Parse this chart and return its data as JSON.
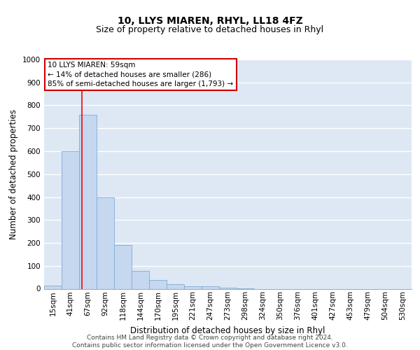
{
  "title1": "10, LLYS MIAREN, RHYL, LL18 4FZ",
  "title2": "Size of property relative to detached houses in Rhyl",
  "xlabel": "Distribution of detached houses by size in Rhyl",
  "ylabel": "Number of detached properties",
  "bar_labels": [
    "15sqm",
    "41sqm",
    "67sqm",
    "92sqm",
    "118sqm",
    "144sqm",
    "170sqm",
    "195sqm",
    "221sqm",
    "247sqm",
    "273sqm",
    "298sqm",
    "324sqm",
    "350sqm",
    "376sqm",
    "401sqm",
    "427sqm",
    "453sqm",
    "479sqm",
    "504sqm",
    "530sqm"
  ],
  "bar_values": [
    15,
    600,
    760,
    400,
    190,
    78,
    38,
    20,
    12,
    10,
    5,
    3,
    0,
    0,
    0,
    0,
    0,
    0,
    0,
    0,
    0
  ],
  "bar_color": "#c5d8f0",
  "bar_edge_color": "#7eabd4",
  "red_line_x": 1.65,
  "annotation_line1": "10 LLYS MIAREN: 59sqm",
  "annotation_line2": "← 14% of detached houses are smaller (286)",
  "annotation_line3": "85% of semi-detached houses are larger (1,793) →",
  "annotation_box_color": "#ffffff",
  "annotation_box_edge_color": "#cc0000",
  "ylim": [
    0,
    1000
  ],
  "yticks": [
    0,
    100,
    200,
    300,
    400,
    500,
    600,
    700,
    800,
    900,
    1000
  ],
  "background_color": "#dde8f4",
  "footer_text": "Contains HM Land Registry data © Crown copyright and database right 2024.\nContains public sector information licensed under the Open Government Licence v3.0.",
  "title1_fontsize": 10,
  "title2_fontsize": 9,
  "xlabel_fontsize": 8.5,
  "ylabel_fontsize": 8.5,
  "tick_fontsize": 7.5,
  "annotation_fontsize": 7.5,
  "footer_fontsize": 6.5
}
